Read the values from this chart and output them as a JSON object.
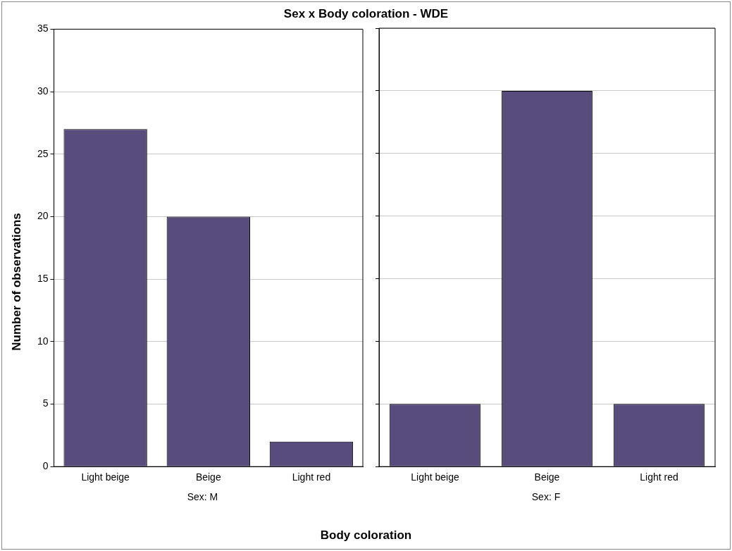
{
  "chart_data": [
    {
      "type": "bar",
      "title": "Sex x Body coloration - WDE",
      "ylabel": "Number of observations",
      "xlabel": "Sex: M",
      "categories": [
        "Light beige",
        "Beige",
        "Light red"
      ],
      "values": [
        27,
        20,
        2
      ],
      "color": "#584c7c",
      "ylim": [
        0,
        35
      ],
      "yticks": [
        0,
        5,
        10,
        15,
        20,
        25,
        30,
        35
      ],
      "grid": "y",
      "annotations": [
        "Body coloration"
      ]
    },
    {
      "type": "bar",
      "xlabel": "Sex: F",
      "categories": [
        "Light beige",
        "Beige",
        "Light red"
      ],
      "values": [
        5,
        30,
        5
      ],
      "color": "#584c7c",
      "ylim": [
        0,
        35
      ],
      "yticks": [
        0,
        5,
        10,
        15,
        20,
        25,
        30,
        35
      ],
      "grid": "y",
      "tick_labels": "x"
    }
  ]
}
